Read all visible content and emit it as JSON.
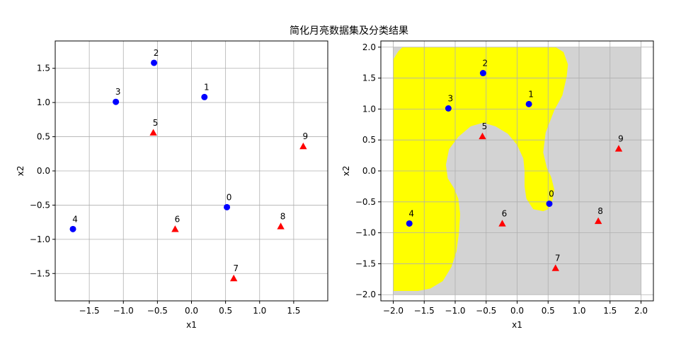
{
  "figure": {
    "title": "简化月亮数据集及分类结果"
  },
  "colors": {
    "class0": "#0000ff",
    "class1": "#ff0000",
    "region_class0": "#ffff00",
    "region_class1": "#d3d3d3",
    "grid": "#b0b0b0"
  },
  "chart_data": [
    {
      "type": "scatter",
      "title": "",
      "xlabel": "x1",
      "ylabel": "x2",
      "xlim": [
        -2.0,
        2.0
      ],
      "ylim": [
        -1.9,
        1.9
      ],
      "xticks": [
        -1.5,
        -1.0,
        -0.5,
        0.0,
        0.5,
        1.0,
        1.5
      ],
      "xtick_labels": [
        "−1.5",
        "−1.0",
        "−0.5",
        "0.0",
        "0.5",
        "1.0",
        "1.5"
      ],
      "yticks": [
        -1.5,
        -1.0,
        -0.5,
        0.0,
        0.5,
        1.0,
        1.5
      ],
      "ytick_labels": [
        "−1.5",
        "−1.0",
        "−0.5",
        "0.0",
        "0.5",
        "1.0",
        "1.5"
      ],
      "grid": true,
      "points": [
        {
          "label": "0",
          "x": 0.52,
          "y": -0.53,
          "class": 0
        },
        {
          "label": "1",
          "x": 0.19,
          "y": 1.08,
          "class": 0
        },
        {
          "label": "2",
          "x": -0.55,
          "y": 1.58,
          "class": 0
        },
        {
          "label": "3",
          "x": -1.11,
          "y": 1.01,
          "class": 0
        },
        {
          "label": "4",
          "x": -1.74,
          "y": -0.85,
          "class": 0
        },
        {
          "label": "5",
          "x": -0.56,
          "y": 0.56,
          "class": 1
        },
        {
          "label": "6",
          "x": -0.24,
          "y": -0.85,
          "class": 1
        },
        {
          "label": "7",
          "x": 0.62,
          "y": -1.57,
          "class": 1
        },
        {
          "label": "8",
          "x": 1.31,
          "y": -0.81,
          "class": 1
        },
        {
          "label": "9",
          "x": 1.64,
          "y": 0.36,
          "class": 1
        }
      ]
    },
    {
      "type": "scatter",
      "title": "",
      "xlabel": "x1",
      "ylabel": "x2",
      "xlim": [
        -2.2,
        2.2
      ],
      "ylim": [
        -2.1,
        2.1
      ],
      "xticks": [
        -2.0,
        -1.5,
        -1.0,
        -0.5,
        0.0,
        0.5,
        1.0,
        1.5,
        2.0
      ],
      "xtick_labels": [
        "−2.0",
        "−1.5",
        "−1.0",
        "−0.5",
        "0.0",
        "0.5",
        "1.0",
        "1.5",
        "2.0"
      ],
      "yticks": [
        -2.0,
        -1.5,
        -1.0,
        -0.5,
        0.0,
        0.5,
        1.0,
        1.5,
        2.0
      ],
      "ytick_labels": [
        "−2.0",
        "−1.5",
        "−1.0",
        "−0.5",
        "0.0",
        "0.5",
        "1.0",
        "1.5",
        "2.0"
      ],
      "grid": true,
      "decision_region": {
        "extent": {
          "x": [
            -2.0,
            2.0
          ],
          "y": [
            -2.0,
            2.0
          ]
        },
        "class0_boundary": [
          [
            -2.0,
            1.8
          ],
          [
            -1.92,
            1.93
          ],
          [
            -1.85,
            2.0
          ],
          [
            0.62,
            2.0
          ],
          [
            0.75,
            1.92
          ],
          [
            0.82,
            1.72
          ],
          [
            0.8,
            1.52
          ],
          [
            0.73,
            1.22
          ],
          [
            0.6,
            0.98
          ],
          [
            0.46,
            0.62
          ],
          [
            0.42,
            0.3
          ],
          [
            0.48,
            0.05
          ],
          [
            0.55,
            -0.1
          ],
          [
            0.6,
            -0.3
          ],
          [
            0.56,
            -0.52
          ],
          [
            0.5,
            -0.62
          ],
          [
            0.42,
            -0.65
          ],
          [
            0.26,
            -0.62
          ],
          [
            0.15,
            -0.45
          ],
          [
            0.12,
            -0.25
          ],
          [
            0.12,
            0.0
          ],
          [
            0.1,
            0.2
          ],
          [
            0.0,
            0.42
          ],
          [
            -0.15,
            0.6
          ],
          [
            -0.35,
            0.72
          ],
          [
            -0.55,
            0.78
          ],
          [
            -0.75,
            0.72
          ],
          [
            -0.95,
            0.55
          ],
          [
            -1.1,
            0.35
          ],
          [
            -1.15,
            0.1
          ],
          [
            -1.12,
            -0.12
          ],
          [
            -1.02,
            -0.28
          ],
          [
            -0.95,
            -0.45
          ],
          [
            -0.92,
            -0.7
          ],
          [
            -0.94,
            -1.0
          ],
          [
            -0.98,
            -1.3
          ],
          [
            -1.06,
            -1.55
          ],
          [
            -1.2,
            -1.78
          ],
          [
            -1.4,
            -1.9
          ],
          [
            -1.6,
            -1.94
          ],
          [
            -2.0,
            -1.94
          ]
        ]
      },
      "points": [
        {
          "label": "0",
          "x": 0.52,
          "y": -0.53,
          "class": 0
        },
        {
          "label": "1",
          "x": 0.19,
          "y": 1.08,
          "class": 0
        },
        {
          "label": "2",
          "x": -0.55,
          "y": 1.58,
          "class": 0
        },
        {
          "label": "3",
          "x": -1.11,
          "y": 1.01,
          "class": 0
        },
        {
          "label": "4",
          "x": -1.74,
          "y": -0.85,
          "class": 0
        },
        {
          "label": "5",
          "x": -0.56,
          "y": 0.56,
          "class": 1
        },
        {
          "label": "6",
          "x": -0.24,
          "y": -0.85,
          "class": 1
        },
        {
          "label": "7",
          "x": 0.62,
          "y": -1.57,
          "class": 1
        },
        {
          "label": "8",
          "x": 1.31,
          "y": -0.81,
          "class": 1
        },
        {
          "label": "9",
          "x": 1.64,
          "y": 0.36,
          "class": 1
        }
      ]
    }
  ]
}
